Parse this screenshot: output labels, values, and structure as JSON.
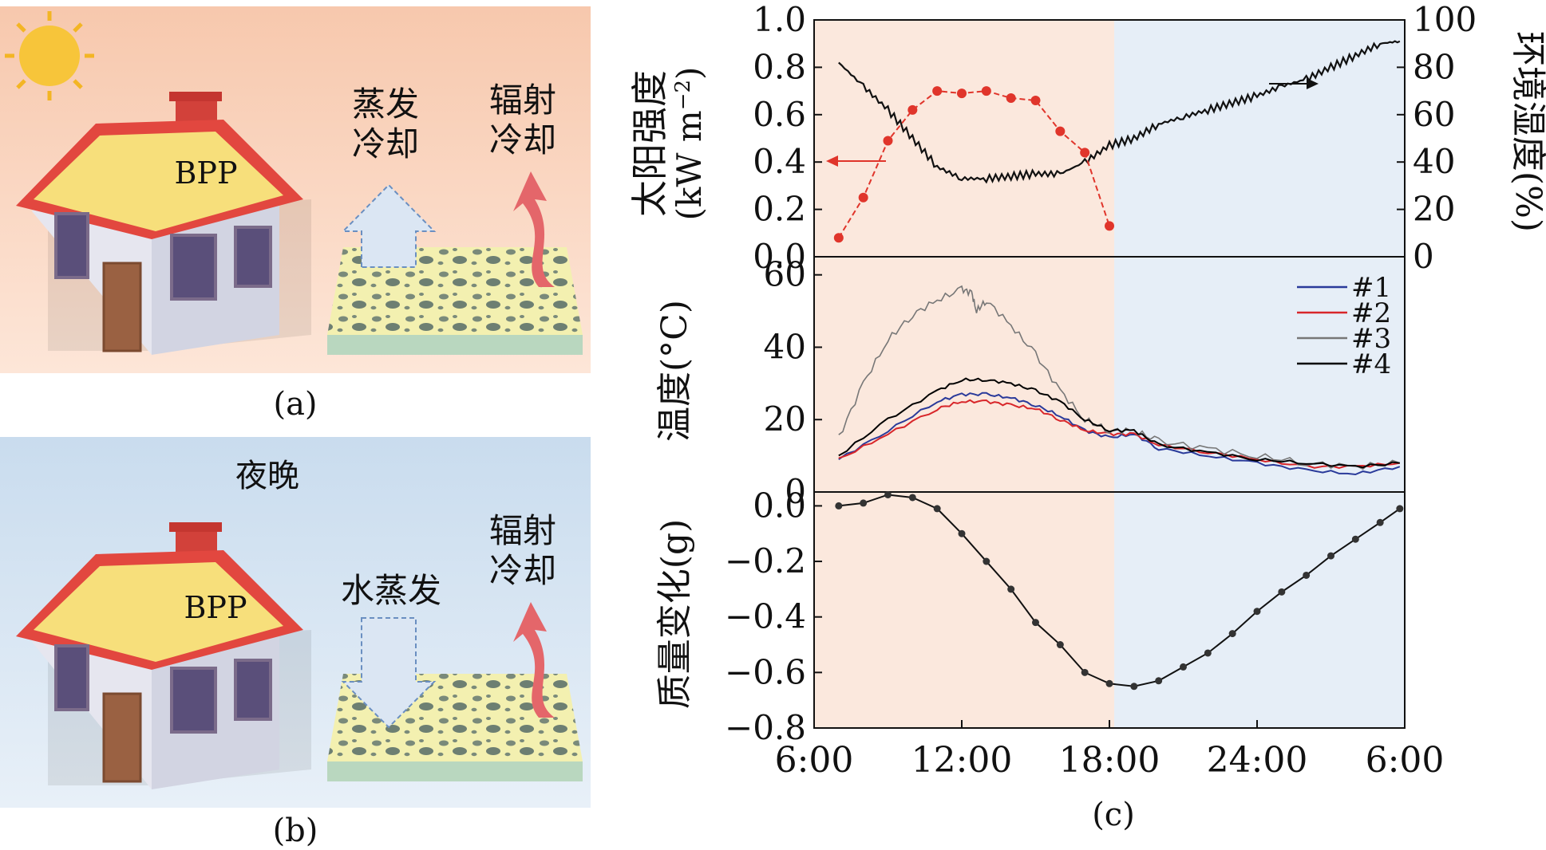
{
  "panel_a": {
    "roof_label": "BPP",
    "evap_label_1": "蒸发",
    "evap_label_2": "冷却",
    "rad_label_1": "辐射",
    "rad_label_2": "冷却",
    "caption": "(a)"
  },
  "panel_b": {
    "title": "夜晚",
    "roof_label": "BPP",
    "water_label": "水蒸发",
    "rad_label_1": "辐射",
    "rad_label_2": "冷却",
    "caption": "(b)"
  },
  "panel_c": {
    "caption": "(c)",
    "x_ticks": [
      "6:00",
      "12:00",
      "18:00",
      "24:00",
      "6:00"
    ],
    "top": {
      "ylabel_left_1": "太阳强度",
      "ylabel_left_2": "(kW m",
      "ylabel_left_sup": "−2",
      "ylabel_left_3": ")",
      "ylabel_right": "环境湿度(%)",
      "y_ticks_left": [
        "0.0",
        "0.2",
        "0.4",
        "0.6",
        "0.8",
        "1.0"
      ],
      "y_ticks_right": [
        "0",
        "20",
        "40",
        "60",
        "80",
        "100"
      ]
    },
    "mid": {
      "ylabel": "温度(°C)",
      "y_ticks": [
        "0",
        "20",
        "40",
        "60"
      ],
      "legend": [
        "#1",
        "#2",
        "#3",
        "#4"
      ]
    },
    "bot": {
      "ylabel": "质量变化(g)",
      "y_ticks": [
        "−0.8",
        "−0.6",
        "−0.4",
        "−0.2",
        "0.0"
      ]
    }
  },
  "colors": {
    "day_bg": "#fbe8dd",
    "night_bg": "#e6eef7",
    "solar": "#e0352b",
    "s1": "#2a3a9a",
    "s2": "#d8262a",
    "s3": "#777777",
    "s4": "#000000"
  },
  "chart_data": [
    {
      "type": "line",
      "name": "top",
      "x_hours": [
        6,
        12,
        18,
        24,
        30
      ],
      "series": [
        {
          "axis": "left",
          "x": [
            7,
            8,
            9,
            10,
            11,
            12,
            13,
            14,
            15,
            16,
            17,
            18
          ],
          "y": [
            0.08,
            0.25,
            0.49,
            0.62,
            0.7,
            0.69,
            0.7,
            0.67,
            0.66,
            0.53,
            0.44,
            0.13
          ]
        },
        {
          "axis": "right",
          "x": [
            7,
            8,
            9,
            10,
            11,
            12,
            13,
            14,
            15,
            16,
            17,
            18,
            19,
            20,
            21,
            22,
            23,
            24,
            25,
            26,
            27,
            28,
            29,
            29.8
          ],
          "y": [
            82,
            72,
            62,
            50,
            38,
            33,
            33,
            34,
            35,
            35,
            40,
            47,
            50,
            56,
            59,
            62,
            65,
            68,
            72,
            75,
            80,
            85,
            90,
            91
          ]
        }
      ],
      "ylim_left": [
        0,
        1.0
      ],
      "ylim_right": [
        0,
        100
      ]
    },
    {
      "type": "line",
      "name": "mid",
      "ylim": [
        0,
        65
      ],
      "series": [
        {
          "name": "#1",
          "x": [
            7,
            9,
            11,
            12,
            13,
            14,
            15,
            16,
            17,
            18,
            19,
            20,
            22,
            24,
            26,
            28,
            29.8
          ],
          "y": [
            9,
            17,
            25,
            27,
            27,
            26,
            24,
            21,
            17,
            15,
            16,
            12,
            10,
            8,
            6,
            5,
            7
          ]
        },
        {
          "name": "#2",
          "x": [
            7,
            9,
            11,
            12,
            13,
            14,
            15,
            16,
            17,
            18,
            19,
            20,
            22,
            24,
            26,
            28,
            29.8
          ],
          "y": [
            9,
            16,
            23,
            25,
            25,
            24,
            23,
            20,
            17,
            16,
            16,
            13,
            11,
            9,
            7,
            7,
            8
          ]
        },
        {
          "name": "#3",
          "x": [
            7,
            8,
            9,
            10,
            11,
            12,
            12.4,
            12.6,
            13,
            14,
            15,
            16,
            17,
            18,
            19,
            20,
            22,
            24,
            26,
            28,
            29.8
          ],
          "y": [
            15,
            30,
            42,
            49,
            53,
            56,
            55,
            50,
            53,
            46,
            38,
            28,
            20,
            17,
            17,
            14,
            12,
            10,
            8,
            7,
            8
          ]
        },
        {
          "name": "#4",
          "x": [
            7,
            9,
            11,
            12,
            13,
            14,
            15,
            16,
            17,
            18,
            19,
            20,
            22,
            24,
            26,
            28,
            29.8
          ],
          "y": [
            10,
            20,
            28,
            31,
            31,
            30,
            28,
            25,
            20,
            17,
            17,
            13,
            11,
            9,
            8,
            7,
            8
          ]
        }
      ]
    },
    {
      "type": "line",
      "name": "bot",
      "ylim": [
        -0.8,
        0.05
      ],
      "series": [
        {
          "x": [
            7,
            8,
            9,
            10,
            11,
            12,
            13,
            14,
            15,
            16,
            17,
            18,
            19,
            20,
            21,
            22,
            23,
            24,
            25,
            26,
            27,
            28,
            29,
            29.8
          ],
          "y": [
            0.0,
            0.01,
            0.04,
            0.03,
            -0.01,
            -0.1,
            -0.2,
            -0.3,
            -0.42,
            -0.5,
            -0.6,
            -0.64,
            -0.65,
            -0.63,
            -0.58,
            -0.53,
            -0.46,
            -0.38,
            -0.31,
            -0.25,
            -0.18,
            -0.12,
            -0.06,
            -0.01
          ]
        }
      ]
    }
  ]
}
